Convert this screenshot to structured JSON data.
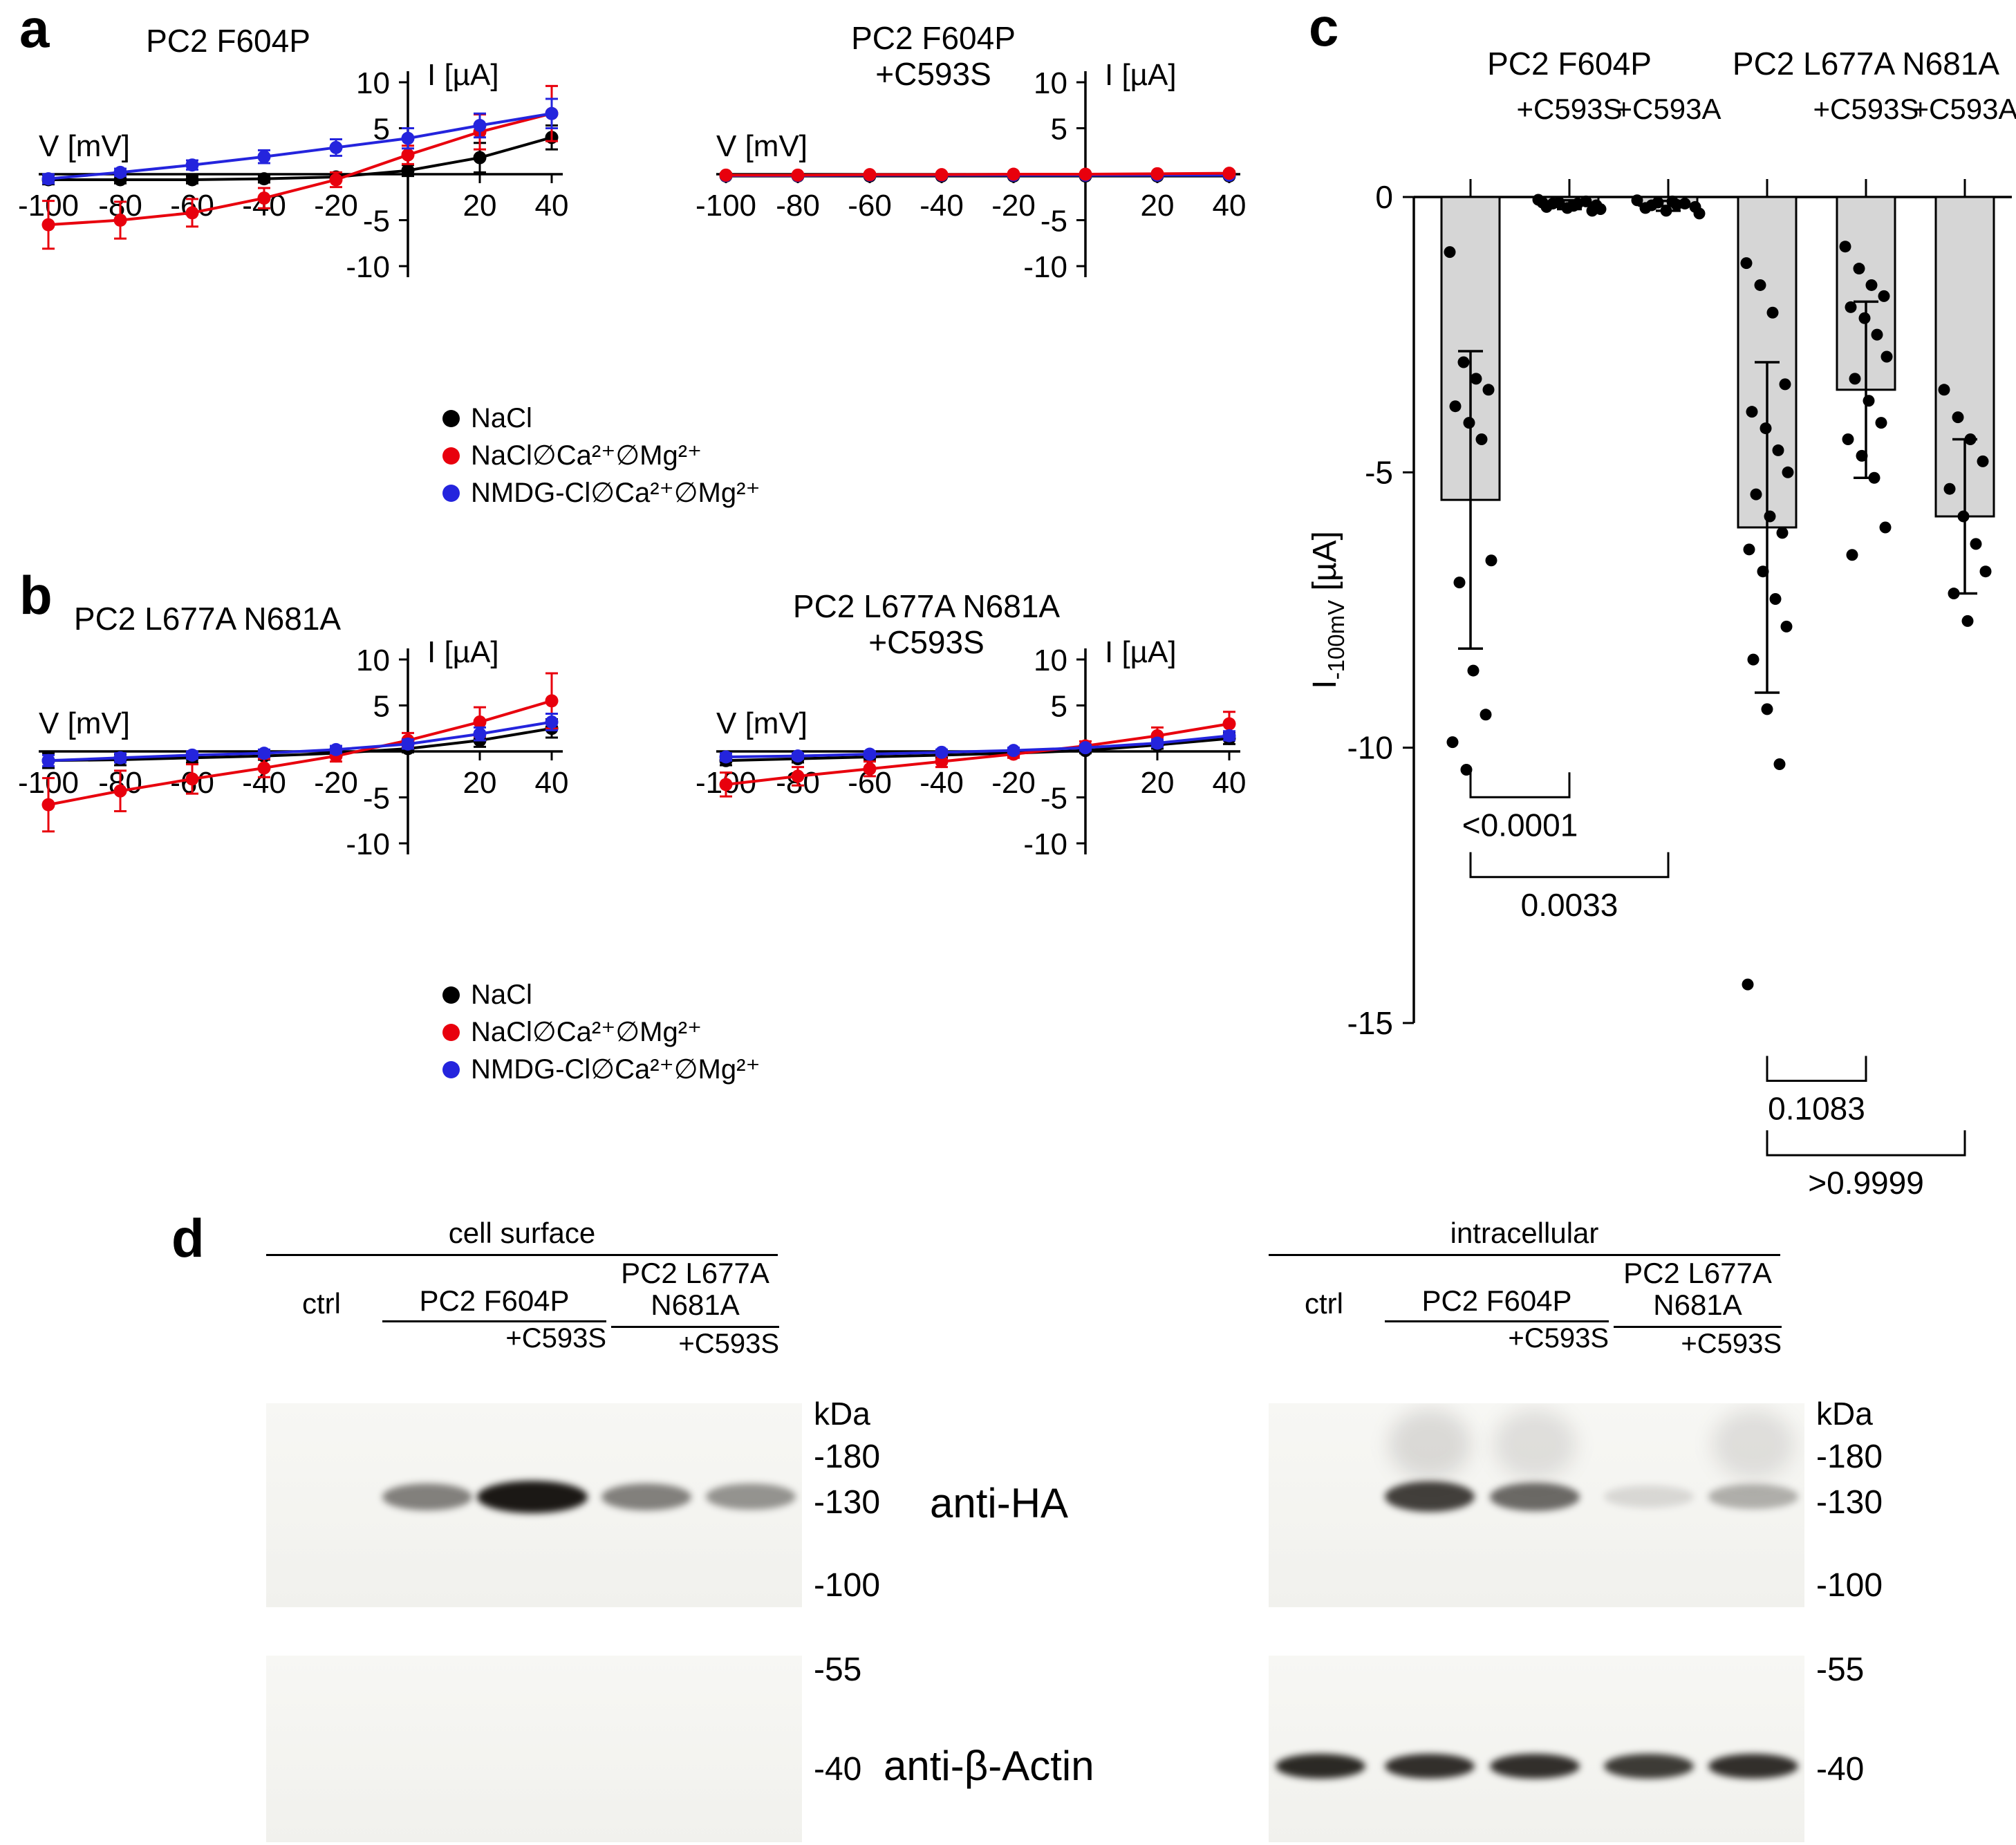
{
  "panel_labels": {
    "a": "a",
    "b": "b",
    "c": "c",
    "d": "d"
  },
  "colors": {
    "black": "#000000",
    "red": "#e8000d",
    "blue": "#2424dd",
    "bar_fill": "#d6d6d6"
  },
  "iv_axis": {
    "x_label": "V [mV]",
    "y_label": "I [µA]",
    "x_ticks": [
      -100,
      -80,
      -60,
      -40,
      -20,
      20,
      40
    ],
    "y_ticks": [
      10,
      5,
      -5,
      -10
    ],
    "xlim": [
      -100,
      40
    ],
    "ylim": [
      -10,
      10
    ]
  },
  "legend": [
    "NaCl",
    "NaCl∅Ca²⁺∅Mg²⁺",
    "NMDG-Cl∅Ca²⁺∅Mg²⁺"
  ],
  "chart_data": [
    {
      "id": "a_left",
      "type": "line",
      "title": "PC2 F604P",
      "x": [
        -100,
        -80,
        -60,
        -40,
        -20,
        0,
        20,
        40
      ],
      "series": [
        {
          "name": "NaCl",
          "color": "black",
          "y": [
            -0.6,
            -0.6,
            -0.6,
            -0.5,
            -0.3,
            0.4,
            1.8,
            4.0
          ],
          "err": [
            0.5,
            0.4,
            0.4,
            0.4,
            0.4,
            0.6,
            1.6,
            1.3
          ]
        },
        {
          "name": "NaCl∅Ca²⁺∅Mg²⁺",
          "color": "red",
          "y": [
            -5.5,
            -5.0,
            -4.2,
            -2.6,
            -0.6,
            2.1,
            4.6,
            6.6
          ],
          "err": [
            2.6,
            2.0,
            1.5,
            1.1,
            0.8,
            1.0,
            1.9,
            3.0
          ]
        },
        {
          "name": "NMDG-Cl∅Ca²⁺∅Mg²⁺",
          "color": "blue",
          "y": [
            -0.5,
            0.2,
            1.0,
            1.9,
            2.9,
            3.9,
            5.3,
            6.6
          ],
          "err": [
            0.5,
            0.4,
            0.5,
            0.7,
            0.9,
            1.1,
            1.3,
            1.6
          ]
        }
      ]
    },
    {
      "id": "a_right",
      "type": "line",
      "title": "PC2 F604P",
      "subtitle": "+C593S",
      "x": [
        -100,
        -80,
        -60,
        -40,
        -20,
        0,
        20,
        40
      ],
      "series": [
        {
          "name": "NaCl",
          "color": "black",
          "y": [
            -0.2,
            -0.2,
            -0.2,
            -0.2,
            -0.2,
            -0.2,
            -0.2,
            -0.2
          ],
          "err": [
            0.1,
            0.1,
            0.1,
            0.1,
            0.1,
            0.1,
            0.1,
            0.1
          ]
        },
        {
          "name": "NMDG-Cl∅Ca²⁺∅Mg²⁺",
          "color": "blue",
          "y": [
            -0.15,
            -0.15,
            -0.1,
            -0.1,
            -0.1,
            -0.1,
            -0.1,
            -0.1
          ],
          "err": [
            0.1,
            0.1,
            0.1,
            0.1,
            0.1,
            0.1,
            0.1,
            0.1
          ]
        },
        {
          "name": "NaCl∅Ca²⁺∅Mg²⁺",
          "color": "red",
          "y": [
            -0.1,
            -0.1,
            -0.05,
            -0.05,
            0,
            0,
            0.05,
            0.1
          ],
          "err": [
            0.2,
            0.15,
            0.15,
            0.1,
            0.1,
            0.1,
            0.15,
            0.2
          ]
        }
      ]
    },
    {
      "id": "b_left",
      "type": "line",
      "title": "PC2 L677A N681A",
      "x": [
        -100,
        -80,
        -60,
        -40,
        -20,
        0,
        20,
        40
      ],
      "series": [
        {
          "name": "NaCl",
          "color": "black",
          "y": [
            -1.0,
            -0.9,
            -0.7,
            -0.5,
            -0.2,
            0.3,
            1.2,
            2.5
          ],
          "err": [
            0.8,
            0.6,
            0.5,
            0.4,
            0.3,
            0.4,
            0.7,
            1.0
          ]
        },
        {
          "name": "NaCl∅Ca²⁺∅Mg²⁺",
          "color": "red",
          "y": [
            -5.8,
            -4.3,
            -3.0,
            -1.8,
            -0.5,
            1.2,
            3.2,
            5.5
          ],
          "err": [
            2.9,
            2.2,
            1.6,
            1.0,
            0.6,
            0.8,
            1.6,
            3.0
          ]
        },
        {
          "name": "NMDG-Cl∅Ca²⁺∅Mg²⁺",
          "color": "blue",
          "y": [
            -1.0,
            -0.7,
            -0.4,
            -0.2,
            0.2,
            0.8,
            1.9,
            3.2
          ],
          "err": [
            0.6,
            0.5,
            0.4,
            0.4,
            0.4,
            0.5,
            0.7,
            0.9
          ]
        }
      ]
    },
    {
      "id": "b_right",
      "type": "line",
      "title": "PC2 L677A N681A",
      "subtitle": "+C593S",
      "x": [
        -100,
        -80,
        -60,
        -40,
        -20,
        0,
        20,
        40
      ],
      "series": [
        {
          "name": "NaCl",
          "color": "black",
          "y": [
            -1.0,
            -0.8,
            -0.6,
            -0.4,
            -0.2,
            0.1,
            0.7,
            1.4
          ],
          "err": [
            0.5,
            0.4,
            0.4,
            0.3,
            0.3,
            0.3,
            0.4,
            0.6
          ]
        },
        {
          "name": "NaCl∅Ca²⁺∅Mg²⁺",
          "color": "red",
          "y": [
            -3.6,
            -2.7,
            -1.9,
            -1.1,
            -0.3,
            0.6,
            1.7,
            3.0
          ],
          "err": [
            1.3,
            1.0,
            0.8,
            0.6,
            0.4,
            0.5,
            0.9,
            1.3
          ]
        },
        {
          "name": "NMDG-Cl∅Ca²⁺∅Mg²⁺",
          "color": "blue",
          "y": [
            -0.6,
            -0.5,
            -0.3,
            -0.1,
            0.1,
            0.4,
            0.9,
            1.7
          ],
          "err": [
            0.4,
            0.3,
            0.3,
            0.3,
            0.3,
            0.3,
            0.4,
            0.5
          ]
        }
      ]
    },
    {
      "id": "c",
      "type": "bar-scatter",
      "ylabel": {
        "main": "I",
        "sub": "-100mV",
        "unit": " [µA]"
      },
      "ylim": [
        -15,
        0
      ],
      "y_ticks": [
        0,
        -5,
        -10,
        -15
      ],
      "group_titles": [
        {
          "label": "PC2 F604P"
        },
        {
          "label": "PC2 L677A N681A"
        }
      ],
      "sub_labels": [
        {
          "index": 1,
          "label": "+C593S"
        },
        {
          "index": 2,
          "label": "+C593A"
        },
        {
          "index": 4,
          "label": "+C593S"
        },
        {
          "index": 5,
          "label": "+C593A"
        }
      ],
      "bars": [
        {
          "mean": -5.5,
          "sd": 2.7,
          "points": [
            -1.0,
            -3.0,
            -3.3,
            -3.5,
            -3.8,
            -4.1,
            -4.4,
            -6.6,
            -7.0,
            -8.6,
            -9.4,
            -9.9,
            -10.4
          ]
        },
        {
          "mean": -0.14,
          "sd": 0.08,
          "points": [
            -0.05,
            -0.1,
            -0.12,
            -0.15,
            -0.18,
            -0.2,
            -0.08,
            -0.22,
            -0.12,
            -0.16,
            -0.25,
            -0.1
          ]
        },
        {
          "mean": -0.16,
          "sd": 0.09,
          "points": [
            -0.06,
            -0.1,
            -0.14,
            -0.18,
            -0.2,
            -0.25,
            -0.12,
            -0.3,
            -0.15,
            -0.08
          ]
        },
        {
          "mean": -6.0,
          "sd": 3.0,
          "points": [
            -1.2,
            -1.6,
            -2.1,
            -3.4,
            -3.9,
            -4.2,
            -4.6,
            -5.0,
            -5.4,
            -5.8,
            -6.1,
            -6.4,
            -6.8,
            -7.3,
            -7.8,
            -8.4,
            -9.3,
            -10.3,
            -14.3
          ]
        },
        {
          "mean": -3.5,
          "sd": 1.6,
          "points": [
            -0.9,
            -1.3,
            -1.6,
            -1.8,
            -2.0,
            -2.2,
            -2.5,
            -2.9,
            -3.3,
            -3.7,
            -4.1,
            -4.4,
            -4.7,
            -5.1,
            -6.0,
            -6.5
          ]
        },
        {
          "mean": -5.8,
          "sd": 1.4,
          "points": [
            -3.5,
            -4.0,
            -4.4,
            -4.8,
            -5.3,
            -5.8,
            -6.3,
            -6.8,
            -7.2,
            -7.7
          ]
        }
      ],
      "comparisons": [
        {
          "a": 0,
          "b": 1,
          "p": "<0.0001",
          "y": -10.9
        },
        {
          "a": 0,
          "b": 2,
          "p": "0.0033",
          "y": -12.35
        },
        {
          "a": 3,
          "b": 4,
          "p": "0.1083",
          "y": -16.05
        },
        {
          "a": 3,
          "b": 5,
          "p": ">0.9999",
          "y": -17.4
        }
      ]
    }
  ],
  "panel_d": {
    "antibody_labels": {
      "ha": "anti-HA",
      "actin": "anti-β-Actin"
    },
    "blocks": [
      {
        "header": "cell surface",
        "ctrl_label": "ctrl",
        "groups": [
          {
            "label": "PC2 F604P",
            "sub": "+C593S"
          },
          {
            "label": "PC2 L677A",
            "label2": "N681A",
            "sub": "+C593S"
          }
        ],
        "kda_title": "kDa",
        "ha_markers": [
          "-180",
          "-130",
          "-100"
        ],
        "actin_markers": [
          "-55",
          "-40"
        ],
        "ha_bands": [
          {
            "lane": 1,
            "i": 0.5
          },
          {
            "lane": 2,
            "i": 0.95
          },
          {
            "lane": 3,
            "i": 0.5
          },
          {
            "lane": 4,
            "i": 0.42
          }
        ],
        "ha_smears": [],
        "actin_bands": []
      },
      {
        "header": "intracellular",
        "ctrl_label": "ctrl",
        "groups": [
          {
            "label": "PC2 F604P",
            "sub": "+C593S"
          },
          {
            "label": "PC2 L677A",
            "label2": "N681A",
            "sub": "+C593S"
          }
        ],
        "kda_title": "kDa",
        "ha_markers": [
          "-180",
          "-130",
          "-100"
        ],
        "actin_markers": [
          "-55",
          "-40"
        ],
        "ha_bands": [
          {
            "lane": 1,
            "i": 0.78
          },
          {
            "lane": 2,
            "i": 0.6
          },
          {
            "lane": 3,
            "i": 0.12
          },
          {
            "lane": 4,
            "i": 0.3
          }
        ],
        "ha_smears": [
          {
            "lane": 1,
            "i": 0.12
          },
          {
            "lane": 2,
            "i": 0.1
          },
          {
            "lane": 4,
            "i": 0.1
          }
        ],
        "actin_bands": [
          {
            "lane": 0,
            "i": 0.88
          },
          {
            "lane": 1,
            "i": 0.85
          },
          {
            "lane": 2,
            "i": 0.85
          },
          {
            "lane": 3,
            "i": 0.8
          },
          {
            "lane": 4,
            "i": 0.85
          }
        ]
      }
    ]
  }
}
